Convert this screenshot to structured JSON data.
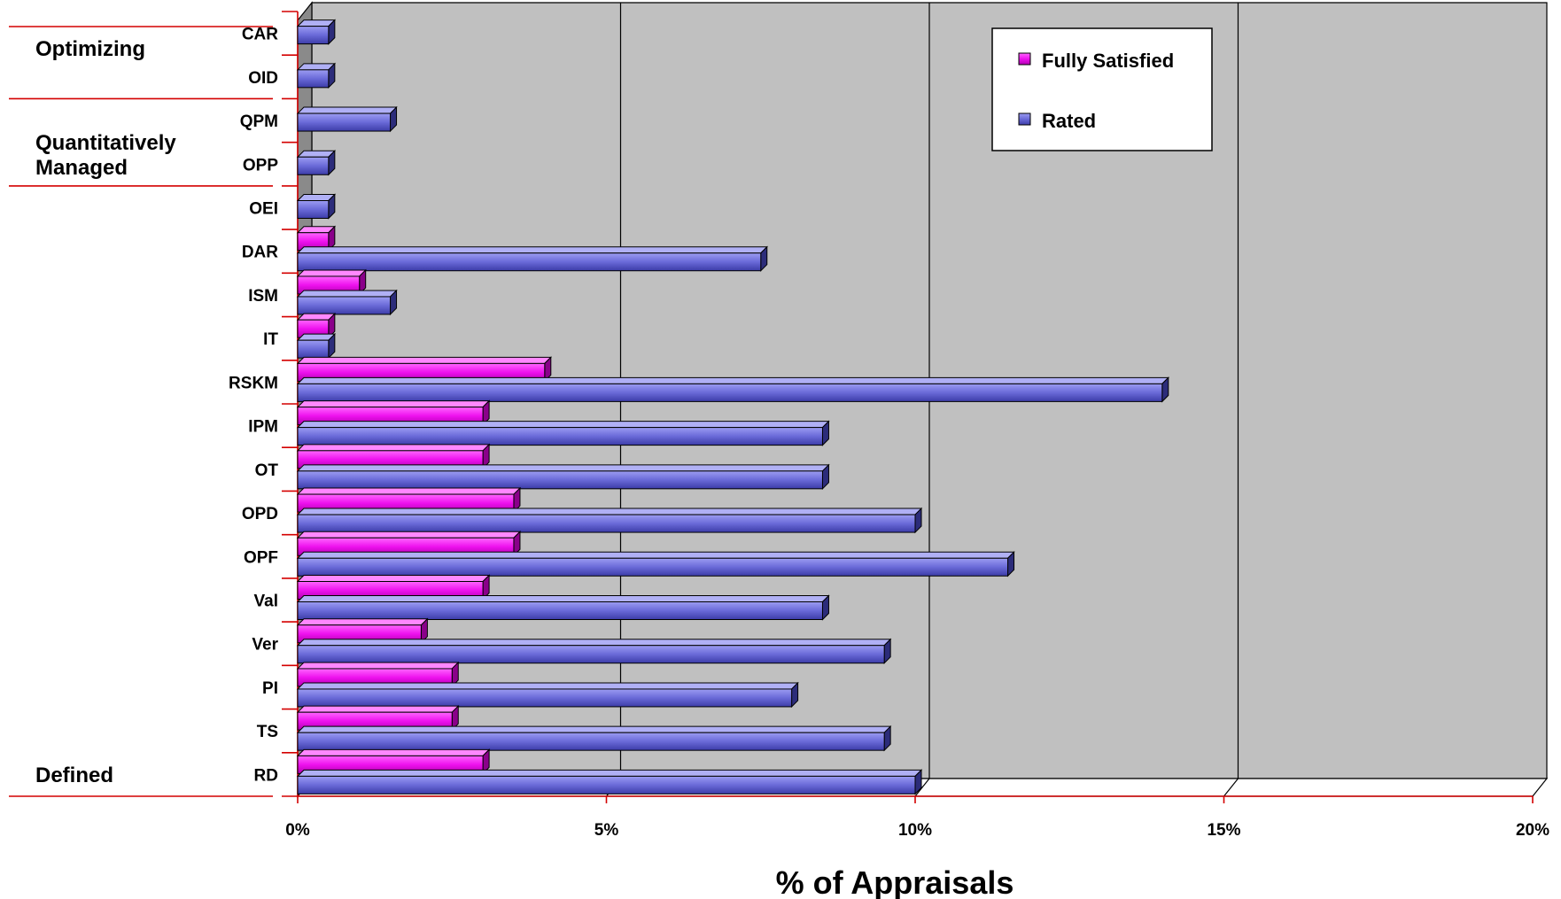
{
  "chart_data": {
    "type": "bar",
    "orientation": "horizontal",
    "categories": [
      "CAR",
      "OID",
      "QPM",
      "OPP",
      "OEI",
      "DAR",
      "ISM",
      "IT",
      "RSKM",
      "IPM",
      "OT",
      "OPD",
      "OPF",
      "Val",
      "Ver",
      "PI",
      "TS",
      "RD"
    ],
    "series": [
      {
        "name": "Fully Satisfied",
        "color": "#ee11ee",
        "values": [
          0,
          0,
          0,
          0,
          0,
          0.5,
          1.0,
          0.5,
          4.0,
          3.0,
          3.0,
          3.5,
          3.5,
          3.0,
          2.0,
          2.5,
          2.5,
          3.0
        ]
      },
      {
        "name": "Rated",
        "color": "#6666dd",
        "values": [
          0.5,
          0.5,
          1.5,
          0.5,
          0.5,
          7.5,
          1.5,
          0.5,
          14.0,
          8.5,
          8.5,
          10.0,
          11.5,
          8.5,
          9.5,
          8.0,
          9.5,
          10.0
        ]
      }
    ],
    "xlabel": "% of Appraisals",
    "ylabel": "",
    "xlim": [
      0,
      20
    ],
    "x_ticks": [
      "0%",
      "5%",
      "10%",
      "15%",
      "20%"
    ],
    "legend_position": "top-right",
    "grid": true,
    "groups": [
      {
        "label_lines": [
          "Optimizing"
        ],
        "categories": [
          "CAR",
          "OID"
        ]
      },
      {
        "label_lines": [
          "Quantitatively",
          "Managed"
        ],
        "categories": [
          "QPM",
          "OPP"
        ]
      },
      {
        "label_lines": [
          "Defined"
        ],
        "categories": [
          "OEI",
          "DAR",
          "ISM",
          "IT",
          "RSKM",
          "IPM",
          "OT",
          "OPD",
          "OPF",
          "Val",
          "Ver",
          "PI",
          "TS",
          "RD"
        ]
      }
    ]
  }
}
